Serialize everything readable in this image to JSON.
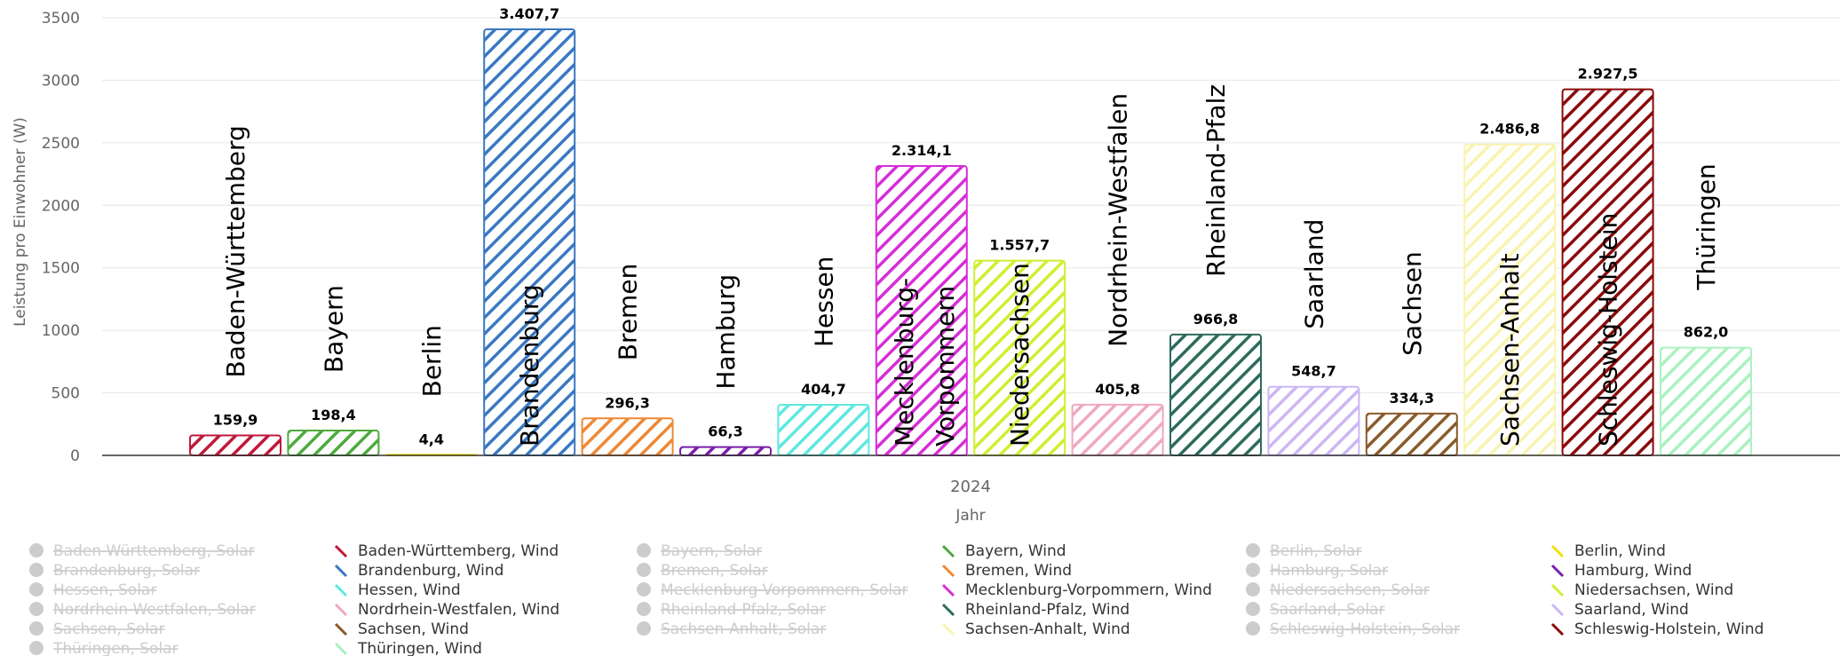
{
  "chart_data": {
    "type": "bar",
    "ylabel": "Leistung pro Einwohner (W)",
    "xlabel": "Jahr",
    "categories": [
      "2024"
    ],
    "ylim": [
      0,
      3500
    ],
    "yticks": [
      0,
      500,
      1000,
      1500,
      2000,
      2500,
      3000,
      3500
    ],
    "grid": true,
    "legend_placement": "bottom",
    "series": [
      {
        "name": "Baden-Württemberg, Wind",
        "state": "Baden-Württemberg",
        "value": 159.9,
        "label": "159,9",
        "color": "#c0183a",
        "visible": true
      },
      {
        "name": "Bayern, Wind",
        "state": "Bayern",
        "value": 198.4,
        "label": "198,4",
        "color": "#4caa3c",
        "visible": true
      },
      {
        "name": "Berlin, Wind",
        "state": "Berlin",
        "value": 4.4,
        "label": "4,4",
        "color": "#f0e000",
        "visible": true
      },
      {
        "name": "Brandenburg, Wind",
        "state": "Brandenburg",
        "value": 3407.7,
        "label": "3.407,7",
        "color": "#3a78c2",
        "visible": true
      },
      {
        "name": "Bremen, Wind",
        "state": "Bremen",
        "value": 296.3,
        "label": "296,3",
        "color": "#ee8833",
        "visible": true
      },
      {
        "name": "Hamburg, Wind",
        "state": "Hamburg",
        "value": 66.3,
        "label": "66,3",
        "color": "#7a1fa8",
        "visible": true
      },
      {
        "name": "Hessen, Wind",
        "state": "Hessen",
        "value": 404.7,
        "label": "404,7",
        "color": "#5ee8e0",
        "visible": true
      },
      {
        "name": "Mecklenburg-Vorpommern, Wind",
        "state": "Mecklenburg-Vorpommern",
        "value": 2314.1,
        "label": "2.314,1",
        "color": "#d62ed6",
        "visible": true
      },
      {
        "name": "Niedersachsen, Wind",
        "state": "Niedersachsen",
        "value": 1557.7,
        "label": "1.557,7",
        "color": "#d0ee30",
        "visible": true
      },
      {
        "name": "Nordrhein-Westfalen, Wind",
        "state": "Nordrhein-Westfalen",
        "value": 405.8,
        "label": "405,8",
        "color": "#f0a8be",
        "visible": true
      },
      {
        "name": "Rheinland-Pfalz, Wind",
        "state": "Rheinland-Pfalz",
        "value": 966.8,
        "label": "966,8",
        "color": "#2d6b5c",
        "visible": true
      },
      {
        "name": "Saarland, Wind",
        "state": "Saarland",
        "value": 548.7,
        "label": "548,7",
        "color": "#cdb6f5",
        "visible": true
      },
      {
        "name": "Sachsen, Wind",
        "state": "Sachsen",
        "value": 334.3,
        "label": "334,3",
        "color": "#8b5a2b",
        "visible": true
      },
      {
        "name": "Sachsen-Anhalt, Wind",
        "state": "Sachsen-Anhalt",
        "value": 2486.8,
        "label": "2.486,8",
        "color": "#f8f4b0",
        "visible": true
      },
      {
        "name": "Schleswig-Holstein, Wind",
        "state": "Schleswig-Holstein",
        "value": 2927.5,
        "label": "2.927,5",
        "color": "#8b0a0a",
        "visible": true
      },
      {
        "name": "Thüringen, Wind",
        "state": "Thüringen",
        "value": 862.0,
        "label": "862,0",
        "color": "#aaf2c0",
        "visible": true
      }
    ],
    "legend": [
      {
        "label": "Baden-Württemberg, Solar",
        "visible": false,
        "color": "#cccccc"
      },
      {
        "label": "Baden-Württemberg, Wind",
        "visible": true,
        "color": "#c0183a"
      },
      {
        "label": "Bayern, Solar",
        "visible": false,
        "color": "#cccccc"
      },
      {
        "label": "Bayern, Wind",
        "visible": true,
        "color": "#4caa3c"
      },
      {
        "label": "Berlin, Solar",
        "visible": false,
        "color": "#cccccc"
      },
      {
        "label": "Berlin, Wind",
        "visible": true,
        "color": "#f0e000"
      },
      {
        "label": "Brandenburg, Solar",
        "visible": false,
        "color": "#cccccc"
      },
      {
        "label": "Brandenburg, Wind",
        "visible": true,
        "color": "#3a78c2"
      },
      {
        "label": "Bremen, Solar",
        "visible": false,
        "color": "#cccccc"
      },
      {
        "label": "Bremen, Wind",
        "visible": true,
        "color": "#ee8833"
      },
      {
        "label": "Hamburg, Solar",
        "visible": false,
        "color": "#cccccc"
      },
      {
        "label": "Hamburg, Wind",
        "visible": true,
        "color": "#7a1fa8"
      },
      {
        "label": "Hessen, Solar",
        "visible": false,
        "color": "#cccccc"
      },
      {
        "label": "Hessen, Wind",
        "visible": true,
        "color": "#5ee8e0"
      },
      {
        "label": "Mecklenburg-Vorpommern, Solar",
        "visible": false,
        "color": "#cccccc"
      },
      {
        "label": "Mecklenburg-Vorpommern, Wind",
        "visible": true,
        "color": "#d62ed6"
      },
      {
        "label": "Niedersachsen, Solar",
        "visible": false,
        "color": "#cccccc"
      },
      {
        "label": "Niedersachsen, Wind",
        "visible": true,
        "color": "#d0ee30"
      },
      {
        "label": "Nordrhein-Westfalen, Solar",
        "visible": false,
        "color": "#cccccc"
      },
      {
        "label": "Nordrhein-Westfalen, Wind",
        "visible": true,
        "color": "#f0a8be"
      },
      {
        "label": "Rheinland-Pfalz, Solar",
        "visible": false,
        "color": "#cccccc"
      },
      {
        "label": "Rheinland-Pfalz, Wind",
        "visible": true,
        "color": "#2d6b5c"
      },
      {
        "label": "Saarland, Solar",
        "visible": false,
        "color": "#cccccc"
      },
      {
        "label": "Saarland, Wind",
        "visible": true,
        "color": "#cdb6f5"
      },
      {
        "label": "Sachsen, Solar",
        "visible": false,
        "color": "#cccccc"
      },
      {
        "label": "Sachsen, Wind",
        "visible": true,
        "color": "#8b5a2b"
      },
      {
        "label": "Sachsen-Anhalt, Solar",
        "visible": false,
        "color": "#cccccc"
      },
      {
        "label": "Sachsen-Anhalt, Wind",
        "visible": true,
        "color": "#f8f4b0"
      },
      {
        "label": "Schleswig-Holstein, Solar",
        "visible": false,
        "color": "#cccccc"
      },
      {
        "label": "Schleswig-Holstein, Wind",
        "visible": true,
        "color": "#8b0a0a"
      },
      {
        "label": "Thüringen, Solar",
        "visible": false,
        "color": "#cccccc"
      },
      {
        "label": "Thüringen, Wind",
        "visible": true,
        "color": "#aaf2c0"
      }
    ]
  }
}
